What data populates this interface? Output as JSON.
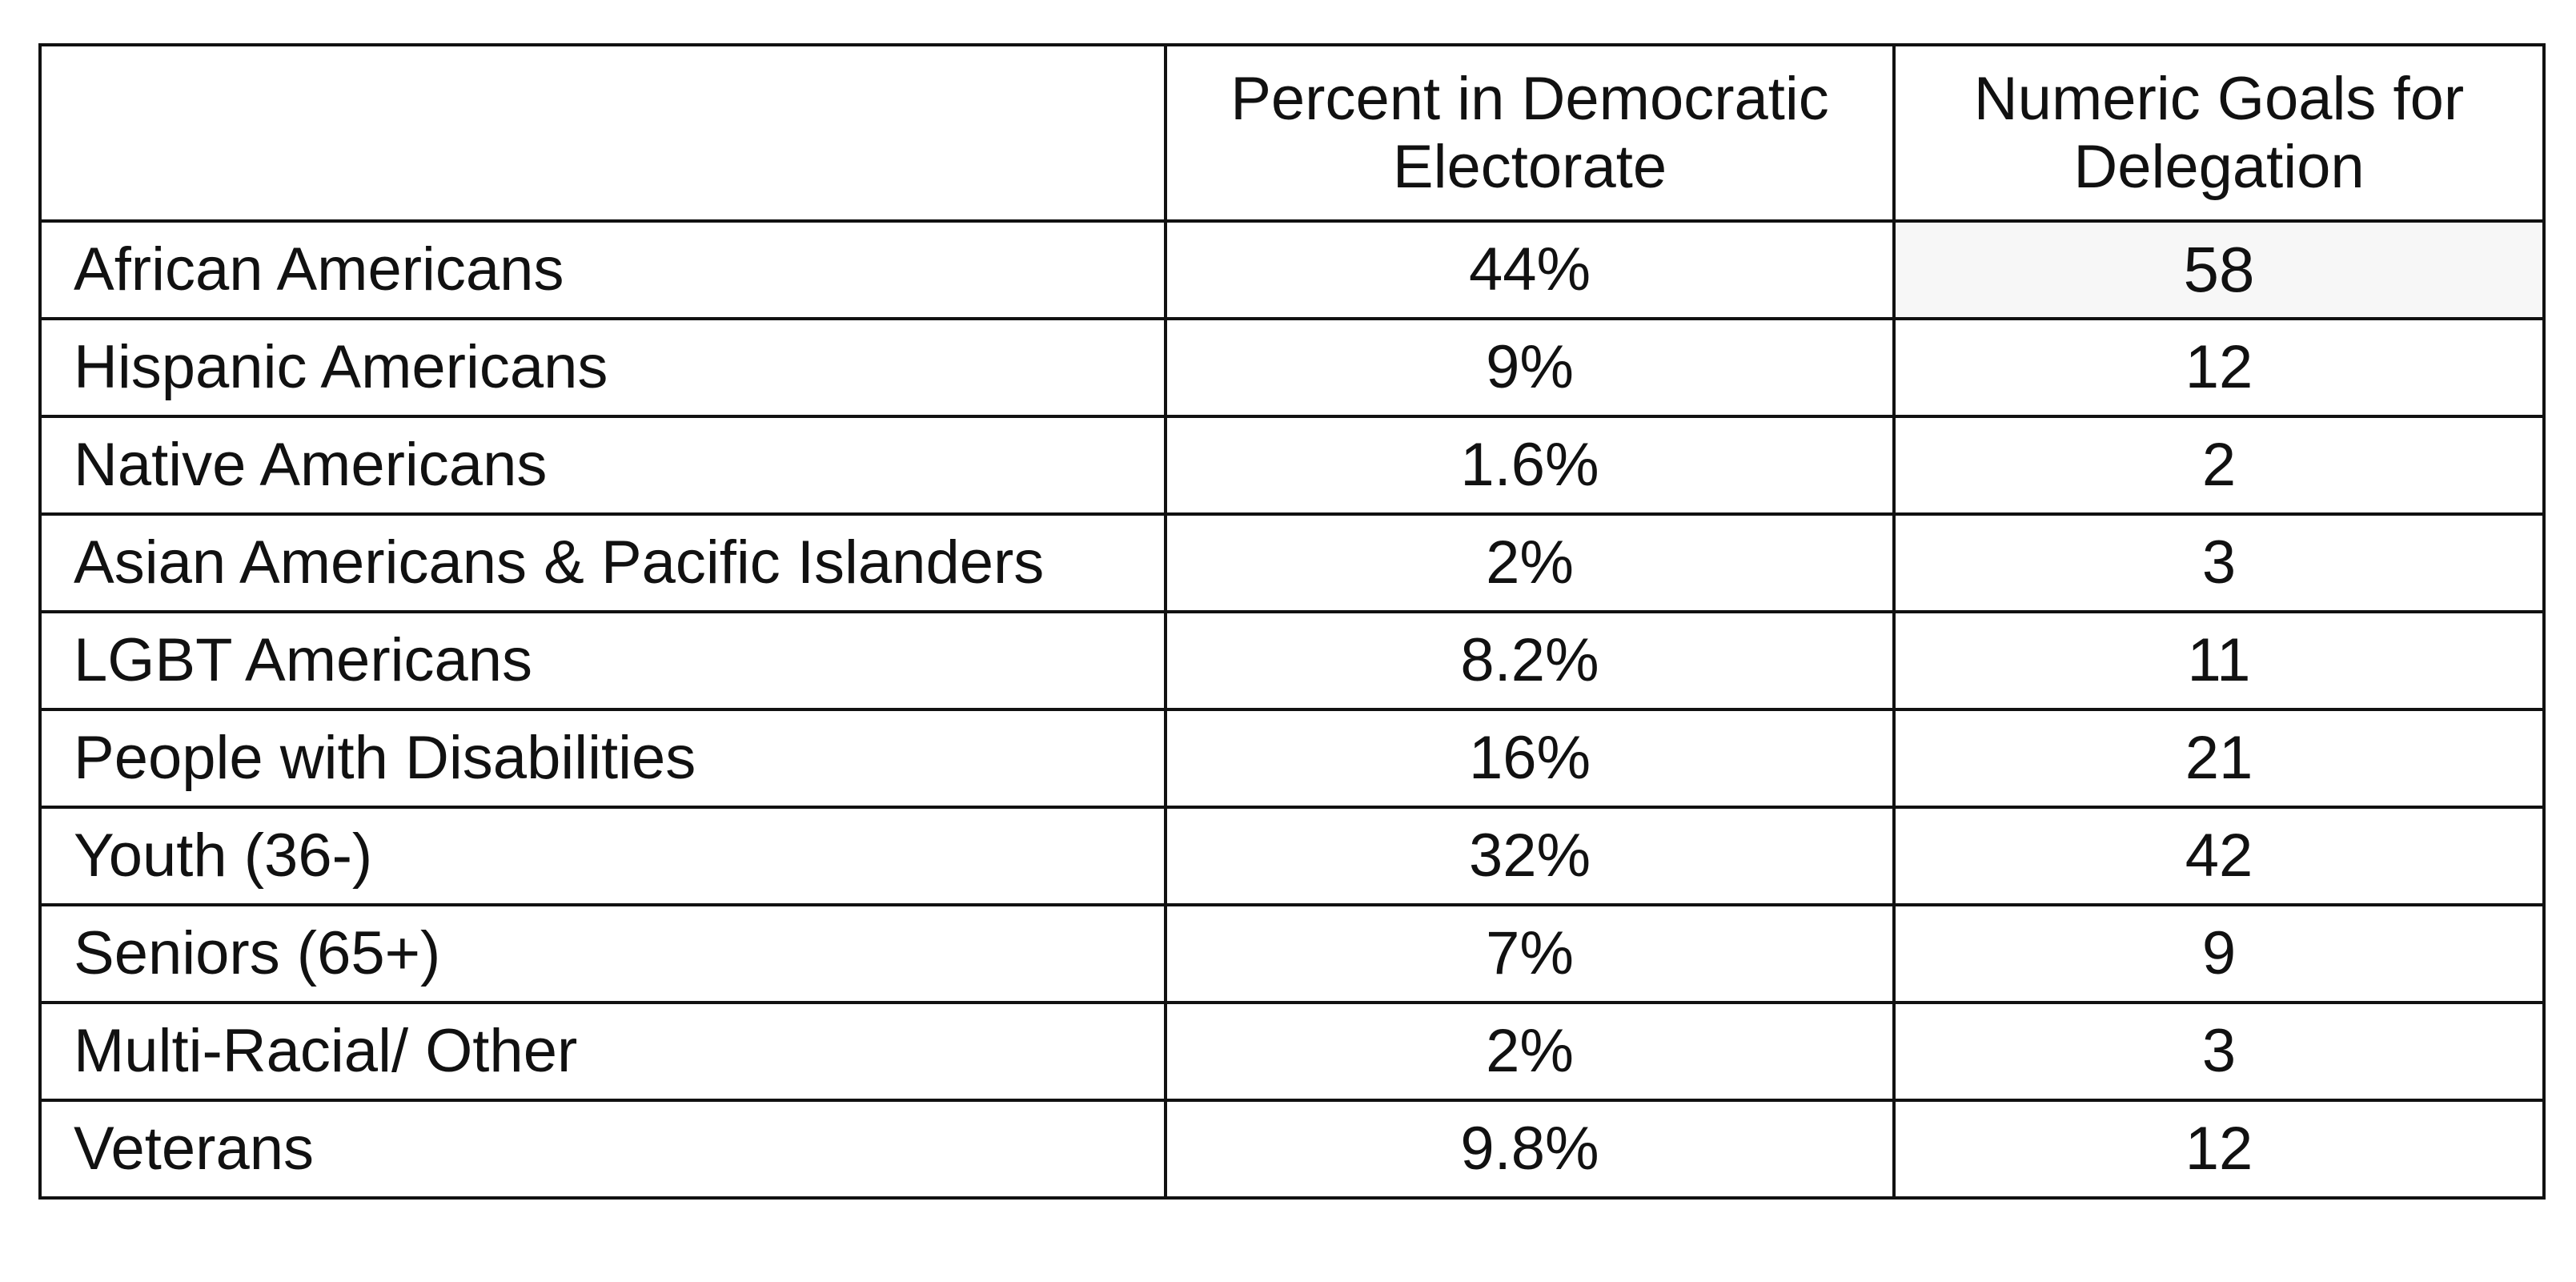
{
  "table": {
    "headers": [
      "",
      "Percent in Democratic Electorate",
      "Numeric Goals for Delegation"
    ],
    "rows": [
      {
        "group": "African Americans",
        "percent": "44%",
        "goal": "58"
      },
      {
        "group": "Hispanic Americans",
        "percent": "9%",
        "goal": "12"
      },
      {
        "group": "Native Americans",
        "percent": "1.6%",
        "goal": "2"
      },
      {
        "group": "Asian Americans & Pacific Islanders",
        "percent": "2%",
        "goal": "3"
      },
      {
        "group": "LGBT Americans",
        "percent": "8.2%",
        "goal": "11"
      },
      {
        "group": "People with Disabilities",
        "percent": "16%",
        "goal": "21"
      },
      {
        "group": "Youth (36-)",
        "percent": "32%",
        "goal": "42"
      },
      {
        "group": "Seniors (65+)",
        "percent": "7%",
        "goal": "9"
      },
      {
        "group": "Multi-Racial/ Other",
        "percent": "2%",
        "goal": "3"
      },
      {
        "group": "Veterans",
        "percent": "9.8%",
        "goal": "12"
      }
    ]
  }
}
